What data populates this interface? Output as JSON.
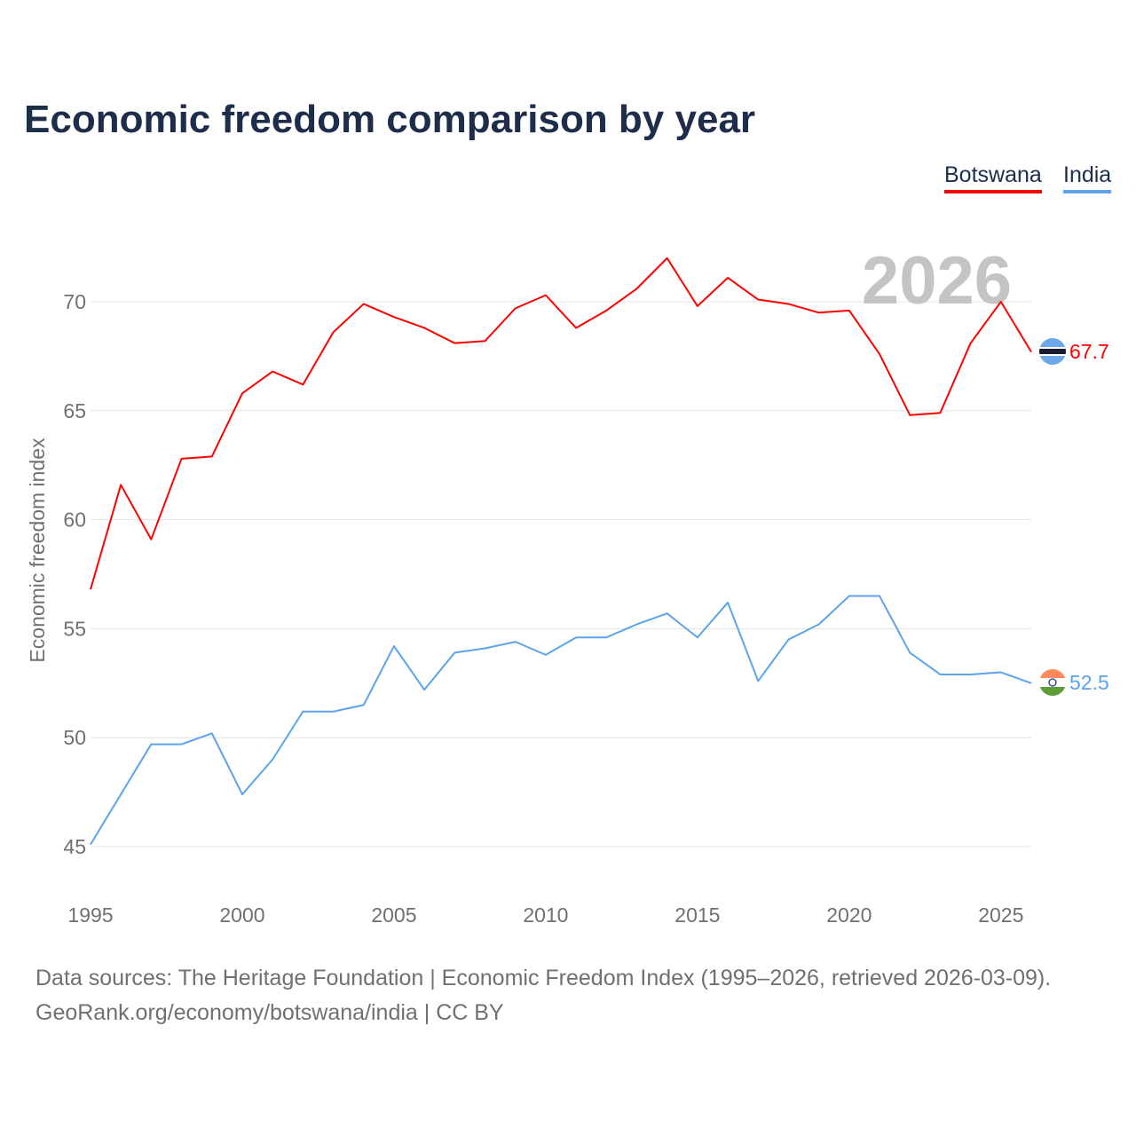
{
  "chart_data": {
    "type": "line",
    "title": "Economic freedom comparison by year",
    "xlabel": "",
    "ylabel": "Economic freedom index",
    "xlim": [
      1995,
      2026
    ],
    "ylim": [
      45,
      72.5
    ],
    "x_ticks": [
      "1995",
      "2000",
      "2005",
      "2010",
      "2015",
      "2020",
      "2025"
    ],
    "y_ticks": [
      "45",
      "50",
      "55",
      "60",
      "65",
      "70"
    ],
    "grid": true,
    "legend_placement": "top-right",
    "watermark_year": "2026",
    "x": [
      1995,
      1996,
      1997,
      1998,
      1999,
      2000,
      2001,
      2002,
      2003,
      2004,
      2005,
      2006,
      2007,
      2008,
      2009,
      2010,
      2011,
      2012,
      2013,
      2014,
      2015,
      2016,
      2017,
      2018,
      2019,
      2020,
      2021,
      2022,
      2023,
      2024,
      2025,
      2026
    ],
    "series": [
      {
        "name": "Botswana",
        "color": "#ff0000",
        "end_label": "67.7",
        "values": [
          56.8,
          61.6,
          59.1,
          62.8,
          62.9,
          65.8,
          66.8,
          66.2,
          68.6,
          69.9,
          69.3,
          68.8,
          68.1,
          68.2,
          69.7,
          70.3,
          68.8,
          69.6,
          70.6,
          72.0,
          69.8,
          71.1,
          70.1,
          69.9,
          69.5,
          69.6,
          67.6,
          64.8,
          64.9,
          68.1,
          70.0,
          67.7
        ]
      },
      {
        "name": "India",
        "color": "#5ba3ea",
        "end_label": "52.5",
        "values": [
          45.1,
          47.4,
          49.7,
          49.7,
          50.2,
          47.4,
          49.0,
          51.2,
          51.2,
          51.5,
          54.2,
          52.2,
          53.9,
          54.1,
          54.4,
          53.8,
          54.6,
          54.6,
          55.2,
          55.7,
          54.6,
          56.2,
          52.6,
          54.5,
          55.2,
          56.5,
          56.5,
          53.9,
          52.9,
          52.9,
          53.0,
          52.5
        ]
      }
    ]
  },
  "footer": {
    "line1": "Data sources: The Heritage Foundation | Economic Freedom Index (1995–2026, retrieved 2026-03-09).",
    "line2": "GeoRank.org/economy/botswana/india | CC BY"
  }
}
